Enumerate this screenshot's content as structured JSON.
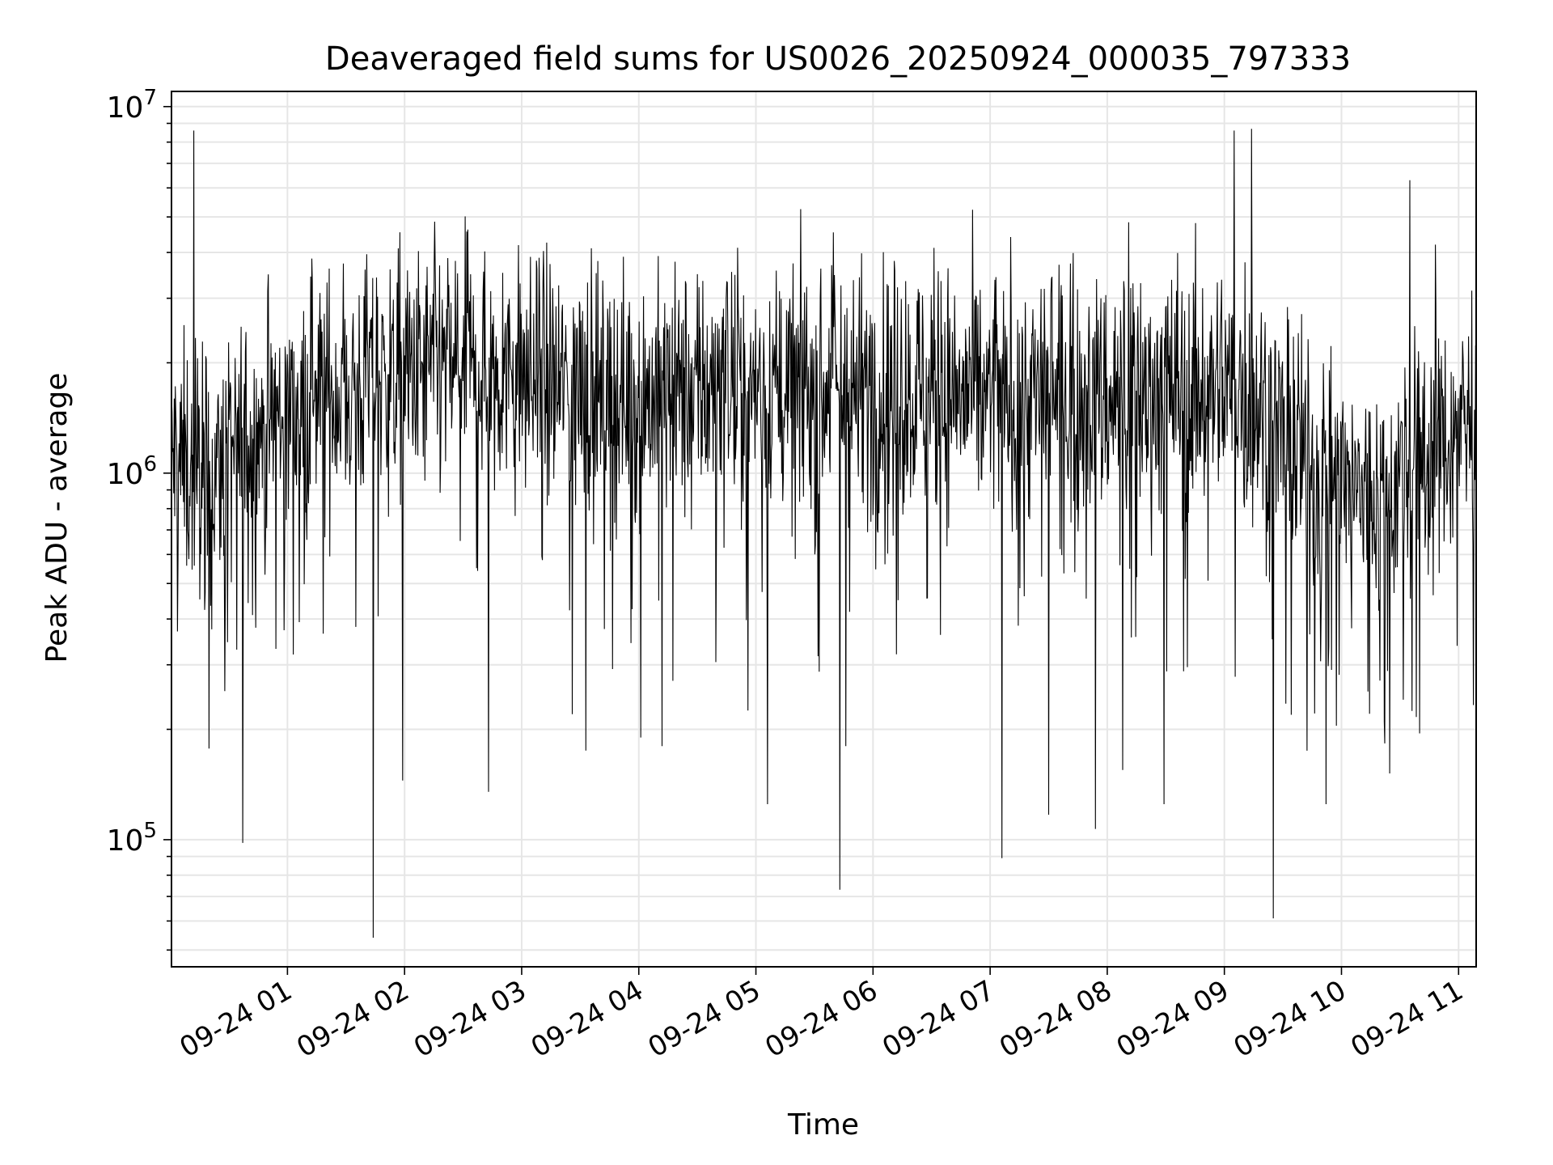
{
  "chart_data": {
    "type": "line",
    "title": "Deaveraged field sums for US0026_20250924_000035_797333",
    "xlabel": "Time",
    "ylabel": "Peak ADU - average",
    "yscale": "log",
    "ylim": [
      45000,
      11000000
    ],
    "xlim": [
      "2025-09-24 00:00:35",
      "2025-09-24 11:09:00"
    ],
    "x_ticks": [
      {
        "t": "2025-09-24 01:00",
        "label": "09-24 01"
      },
      {
        "t": "2025-09-24 02:00",
        "label": "09-24 02"
      },
      {
        "t": "2025-09-24 03:00",
        "label": "09-24 03"
      },
      {
        "t": "2025-09-24 04:00",
        "label": "09-24 04"
      },
      {
        "t": "2025-09-24 05:00",
        "label": "09-24 05"
      },
      {
        "t": "2025-09-24 06:00",
        "label": "09-24 06"
      },
      {
        "t": "2025-09-24 07:00",
        "label": "09-24 07"
      },
      {
        "t": "2025-09-24 08:00",
        "label": "09-24 08"
      },
      {
        "t": "2025-09-24 09:00",
        "label": "09-24 09"
      },
      {
        "t": "2025-09-24 10:00",
        "label": "09-24 10"
      },
      {
        "t": "2025-09-24 11:00",
        "label": "09-24 11"
      }
    ],
    "y_ticks": [
      {
        "value": 100000,
        "base": "10",
        "exp": "5"
      },
      {
        "value": 1000000,
        "base": "10",
        "exp": "6"
      },
      {
        "value": 10000000,
        "base": "10",
        "exp": "7"
      }
    ],
    "grid": true,
    "series_color": "#000000",
    "envelope": [
      {
        "t": "2025-09-24 00:00:35",
        "median": 1100000
      },
      {
        "t": "2025-09-24 00:20",
        "median": 950000
      },
      {
        "t": "2025-09-24 00:40",
        "median": 1250000
      },
      {
        "t": "2025-09-24 01:00",
        "median": 1450000
      },
      {
        "t": "2025-09-24 01:30",
        "median": 1700000
      },
      {
        "t": "2025-09-24 02:00",
        "median": 1800000
      },
      {
        "t": "2025-09-24 02:30",
        "median": 1950000
      },
      {
        "t": "2025-09-24 03:00",
        "median": 1800000
      },
      {
        "t": "2025-09-24 04:00",
        "median": 1600000
      },
      {
        "t": "2025-09-24 05:00",
        "median": 1700000
      },
      {
        "t": "2025-09-24 06:00",
        "median": 1700000
      },
      {
        "t": "2025-09-24 07:00",
        "median": 1600000
      },
      {
        "t": "2025-09-24 08:00",
        "median": 1600000
      },
      {
        "t": "2025-09-24 09:00",
        "median": 1700000
      },
      {
        "t": "2025-09-24 09:20",
        "median": 1500000
      },
      {
        "t": "2025-09-24 09:40",
        "median": 1050000
      },
      {
        "t": "2025-09-24 10:00",
        "median": 900000
      },
      {
        "t": "2025-09-24 10:20",
        "median": 850000
      },
      {
        "t": "2025-09-24 10:40",
        "median": 1100000
      },
      {
        "t": "2025-09-24 11:09",
        "median": 1350000
      }
    ],
    "spikes": [
      {
        "t": "2025-09-24 00:12",
        "value": 8600000
      },
      {
        "t": "2025-09-24 00:37",
        "value": 98000
      },
      {
        "t": "2025-09-24 00:34",
        "value": 330000
      },
      {
        "t": "2025-09-24 00:42",
        "value": 410000
      },
      {
        "t": "2025-09-24 01:03",
        "value": 320000
      },
      {
        "t": "2025-09-24 01:44",
        "value": 54000
      },
      {
        "t": "2025-09-24 01:59",
        "value": 145000
      },
      {
        "t": "2025-09-24 02:43",
        "value": 135000
      },
      {
        "t": "2025-09-24 03:26",
        "value": 220000
      },
      {
        "t": "2025-09-24 03:33",
        "value": 175000
      },
      {
        "t": "2025-09-24 04:01",
        "value": 190000
      },
      {
        "t": "2025-09-24 04:12",
        "value": 180000
      },
      {
        "t": "2025-09-24 04:56",
        "value": 225000
      },
      {
        "t": "2025-09-24 05:06",
        "value": 125000
      },
      {
        "t": "2025-09-24 05:43",
        "value": 73000
      },
      {
        "t": "2025-09-24 05:46",
        "value": 180000
      },
      {
        "t": "2025-09-24 07:06",
        "value": 89000
      },
      {
        "t": "2025-09-24 07:30",
        "value": 117000
      },
      {
        "t": "2025-09-24 07:54",
        "value": 107000
      },
      {
        "t": "2025-09-24 08:08",
        "value": 155000
      },
      {
        "t": "2025-09-24 08:29",
        "value": 125000
      },
      {
        "t": "2025-09-24 09:05",
        "value": 8600000
      },
      {
        "t": "2025-09-24 09:14",
        "value": 8700000
      },
      {
        "t": "2025-09-24 09:25",
        "value": 61000
      },
      {
        "t": "2025-09-24 09:52",
        "value": 125000
      },
      {
        "t": "2025-09-24 10:22",
        "value": 210000
      },
      {
        "t": "2025-09-24 10:35",
        "value": 6300000
      },
      {
        "t": "2025-09-24 10:40",
        "value": 195000
      },
      {
        "t": "2025-09-24 10:48",
        "value": 4200000
      }
    ]
  }
}
